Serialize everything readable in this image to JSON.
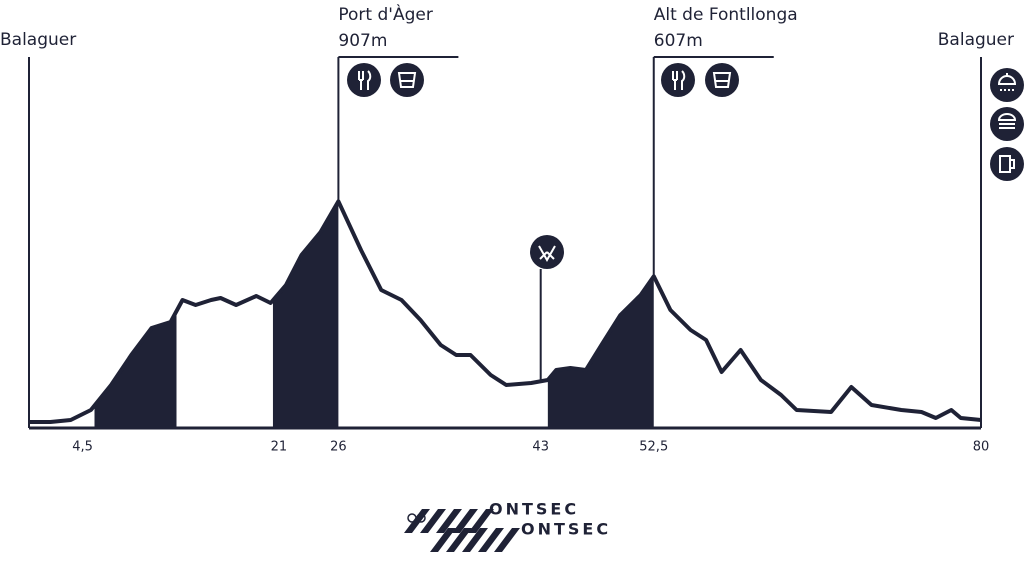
{
  "chart_data": {
    "type": "area",
    "x": [
      0,
      1.8,
      3.5,
      5.2,
      6.9,
      8.6,
      10.3,
      11.9,
      12.9,
      14.0,
      15.3,
      16.1,
      17.4,
      19.1,
      20.3,
      21.6,
      22.9,
      24.5,
      26.0,
      27.9,
      29.6,
      31.3,
      32.9,
      34.6,
      35.9,
      37.1,
      38.8,
      40.1,
      42.2,
      43.6,
      44.3,
      45.5,
      46.8,
      48.1,
      49.7,
      51.4,
      52.5,
      53.9,
      55.6,
      56.9,
      58.2,
      59.8,
      61.5,
      63.2,
      64.5,
      67.4,
      69.1,
      70.8,
      73.3,
      75.0,
      76.2,
      77.5,
      78.3,
      80
    ],
    "values": [
      24,
      24,
      32,
      72,
      172,
      292,
      400,
      424,
      512,
      492,
      512,
      520,
      492,
      528,
      500,
      572,
      692,
      784,
      907,
      712,
      552,
      512,
      432,
      332,
      292,
      292,
      212,
      172,
      180,
      192,
      232,
      240,
      232,
      332,
      452,
      532,
      607,
      472,
      392,
      352,
      224,
      312,
      192,
      132,
      72,
      64,
      164,
      92,
      72,
      64,
      40,
      72,
      40,
      32
    ],
    "color": "#1f2236",
    "xlim": [
      0,
      80
    ],
    "ylim": [
      0,
      1000
    ],
    "xticks": [
      {
        "value": 4.5,
        "label": "4,5"
      },
      21,
      26,
      43,
      {
        "value": 52.5,
        "label": "52,5"
      },
      80
    ],
    "shaded": [
      [
        5.5,
        12.4
      ],
      [
        20.5,
        26.0
      ],
      [
        43.6,
        52.5
      ]
    ],
    "pois": [
      {
        "name": "Balaguer",
        "km": 0
      },
      {
        "name": "Port d'Àger",
        "km": 26,
        "elevation": "907m"
      },
      {
        "name": "Alt de Fontllonga",
        "km": 52.5,
        "elevation": "607m"
      },
      {
        "name": "Balaguer",
        "km": 80
      }
    ],
    "logo_lines": [
      "ONTSEC",
      "ONTSEC"
    ]
  }
}
